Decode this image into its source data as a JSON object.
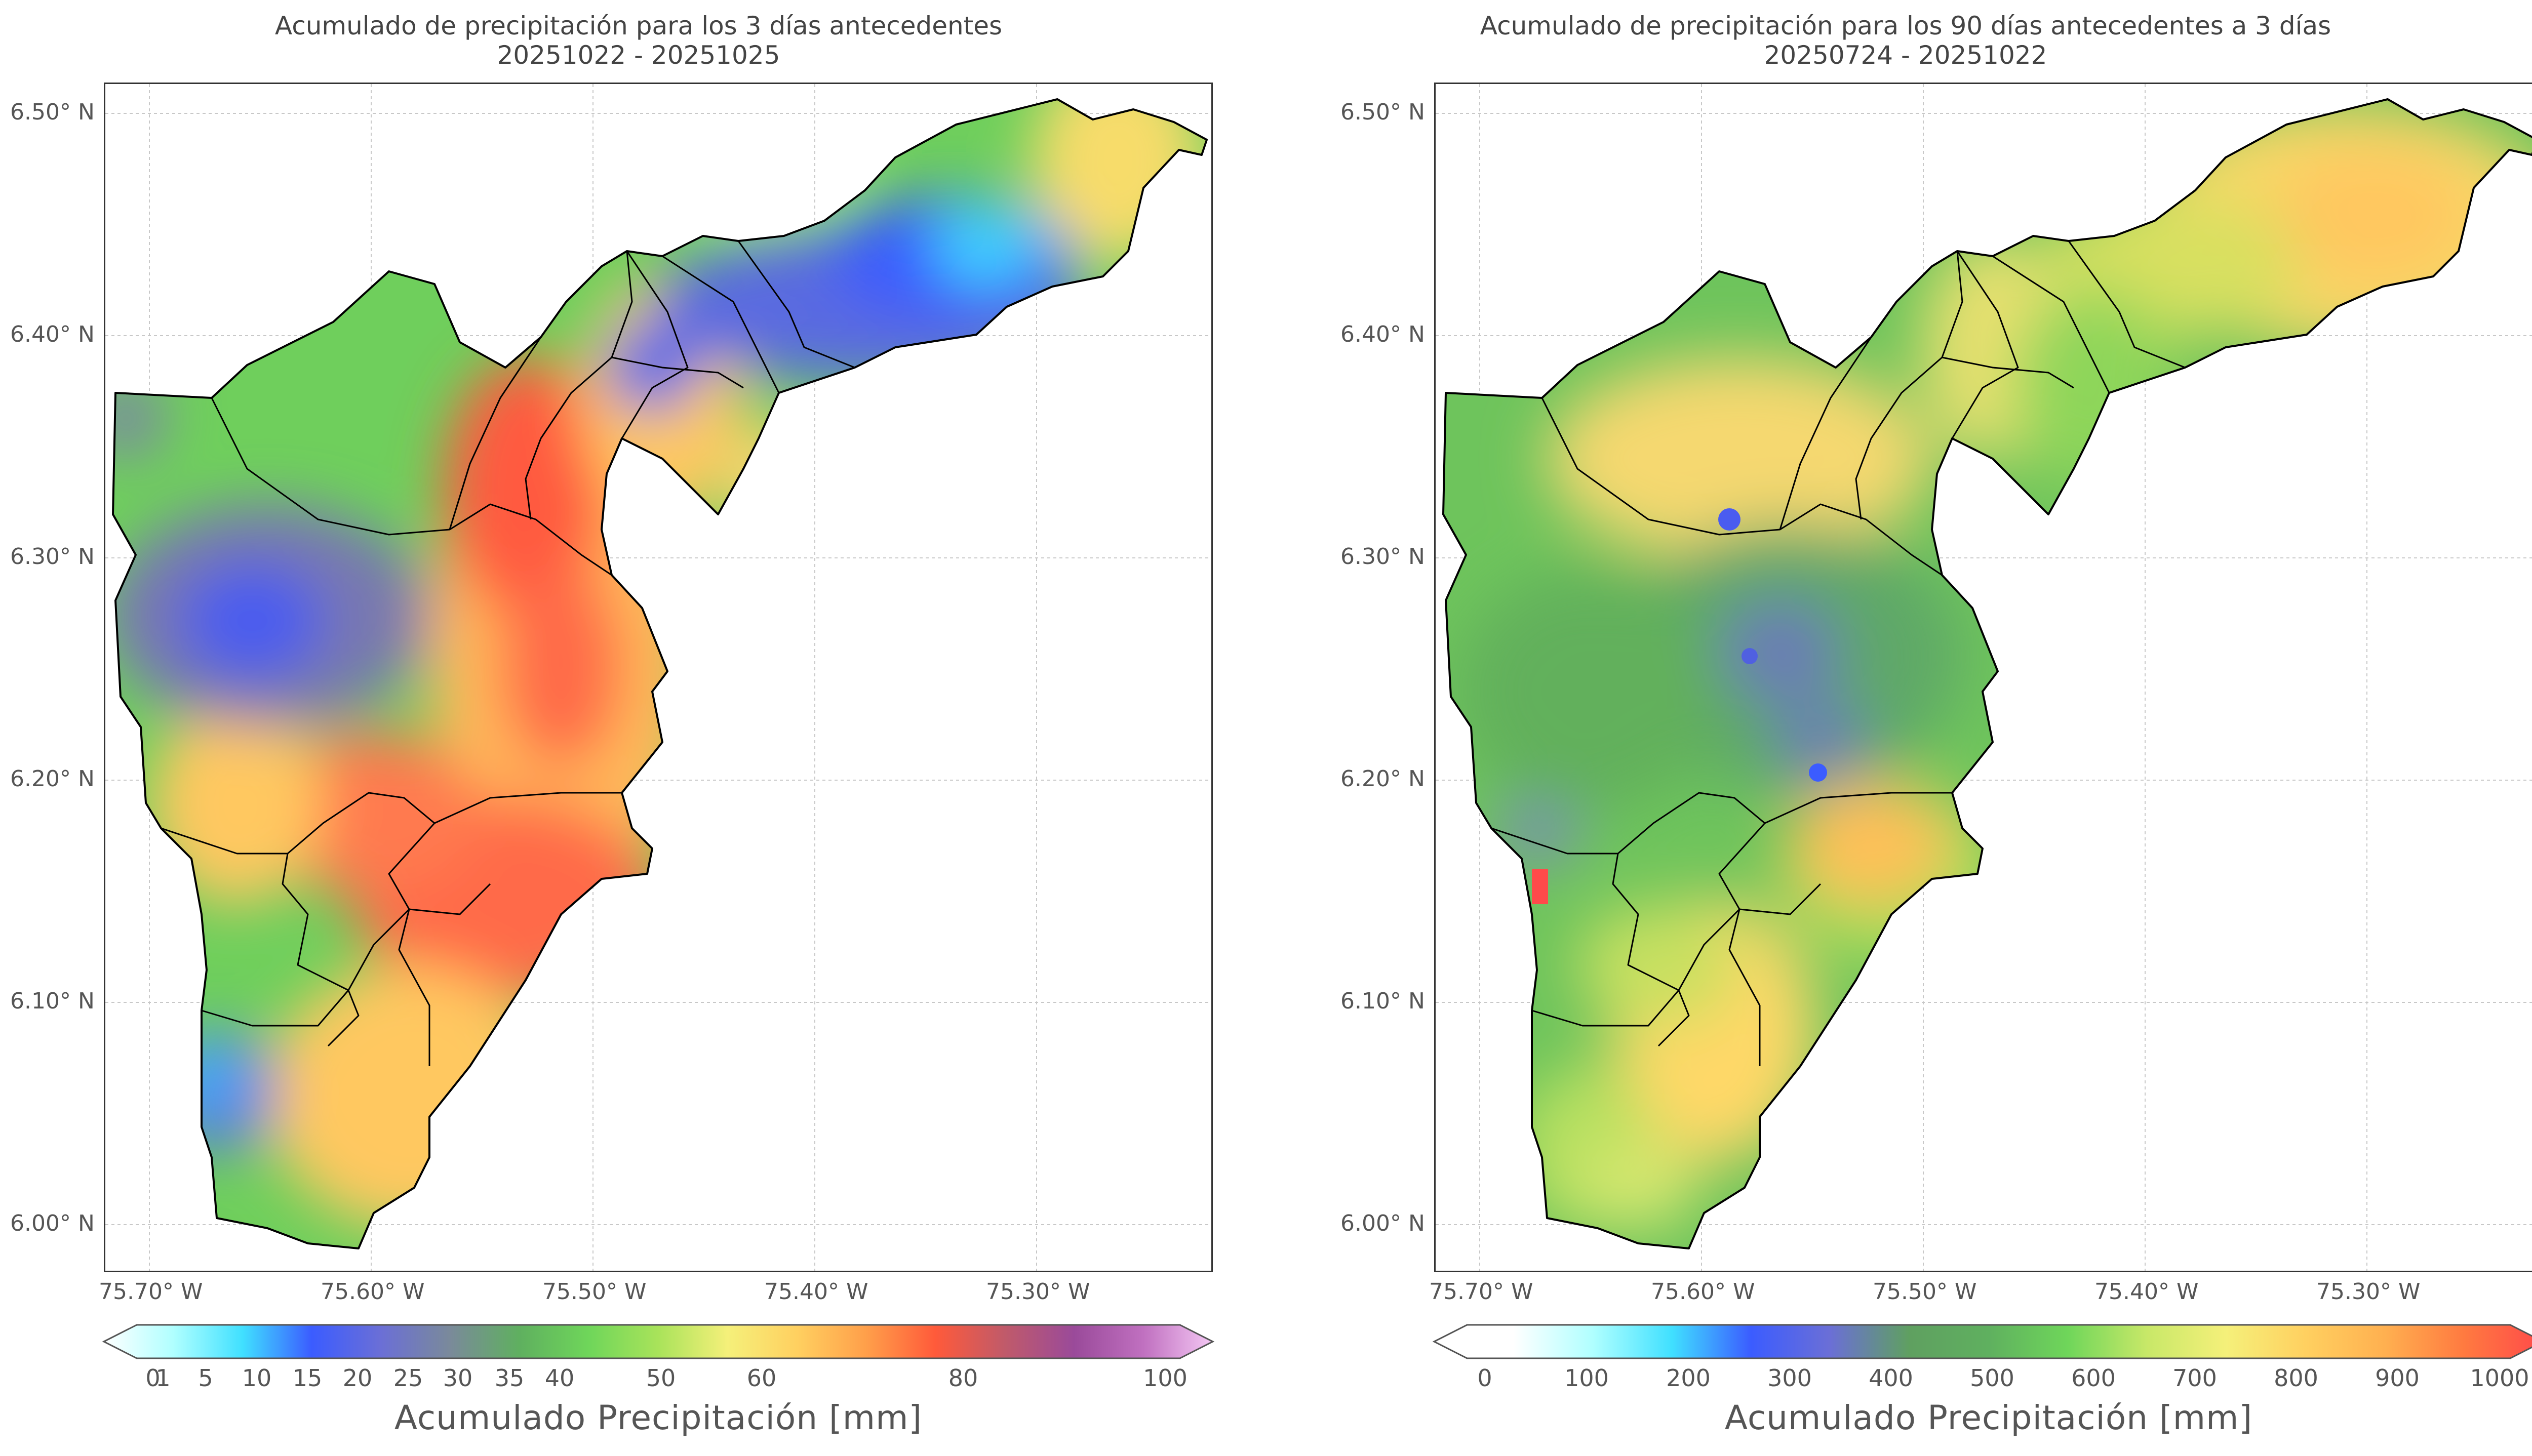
{
  "panels": [
    {
      "title_line1": "Acumulado de precipitación para los 3 días antecedentes",
      "title_line2": "20251022 - 20251025",
      "colorbar_title": "Acumulado Precipitación [mm]",
      "colorbar_ticks": [
        "0",
        "1",
        "5",
        "10",
        "15",
        "20",
        "25",
        "30",
        "35",
        "40",
        "50",
        "60",
        "80",
        "100"
      ],
      "colorbar_colors": [
        "#ffffff",
        "#b0ffff",
        "#40e0ff",
        "#3b5cff",
        "#6b6fd6",
        "#7a8a9a",
        "#5fb05f",
        "#6fd65a",
        "#a9e35a",
        "#f5f07a",
        "#ffd060",
        "#ff9f4a",
        "#ff5a3a",
        "#c05a6a",
        "#9a4a9a",
        "#c070c0",
        "#f4c8f4"
      ],
      "lat_labels": [
        "6.50° N",
        "6.40° N",
        "6.30° N",
        "6.20° N",
        "6.10° N",
        "6.00° N"
      ],
      "lon_labels": [
        "75.70° W",
        "75.60° W",
        "75.50° W",
        "75.40° W",
        "75.30° W"
      ]
    },
    {
      "title_line1": "Acumulado de precipitación para los 90 días antecedentes a 3 días",
      "title_line2": "20250724 - 20251022",
      "colorbar_title": "Acumulado Precipitación [mm]",
      "colorbar_ticks": [
        "0",
        "100",
        "200",
        "300",
        "400",
        "500",
        "600",
        "700",
        "800",
        "900",
        "1000"
      ],
      "colorbar_colors": [
        "#ffffff",
        "#ffffff",
        "#b0ffff",
        "#40e0ff",
        "#3b5cff",
        "#6b6fd6",
        "#5fa060",
        "#5fb05f",
        "#6fd65a",
        "#c8e868",
        "#f5f07a",
        "#ffd060",
        "#ffb050",
        "#ff7a40",
        "#ff4a4a"
      ],
      "lat_labels": [
        "6.50° N",
        "6.40° N",
        "6.30° N",
        "6.20° N",
        "6.10° N",
        "6.00° N"
      ],
      "lon_labels": [
        "75.70° W",
        "75.60° W",
        "75.50° W",
        "75.40° W",
        "75.30° W"
      ]
    }
  ]
}
